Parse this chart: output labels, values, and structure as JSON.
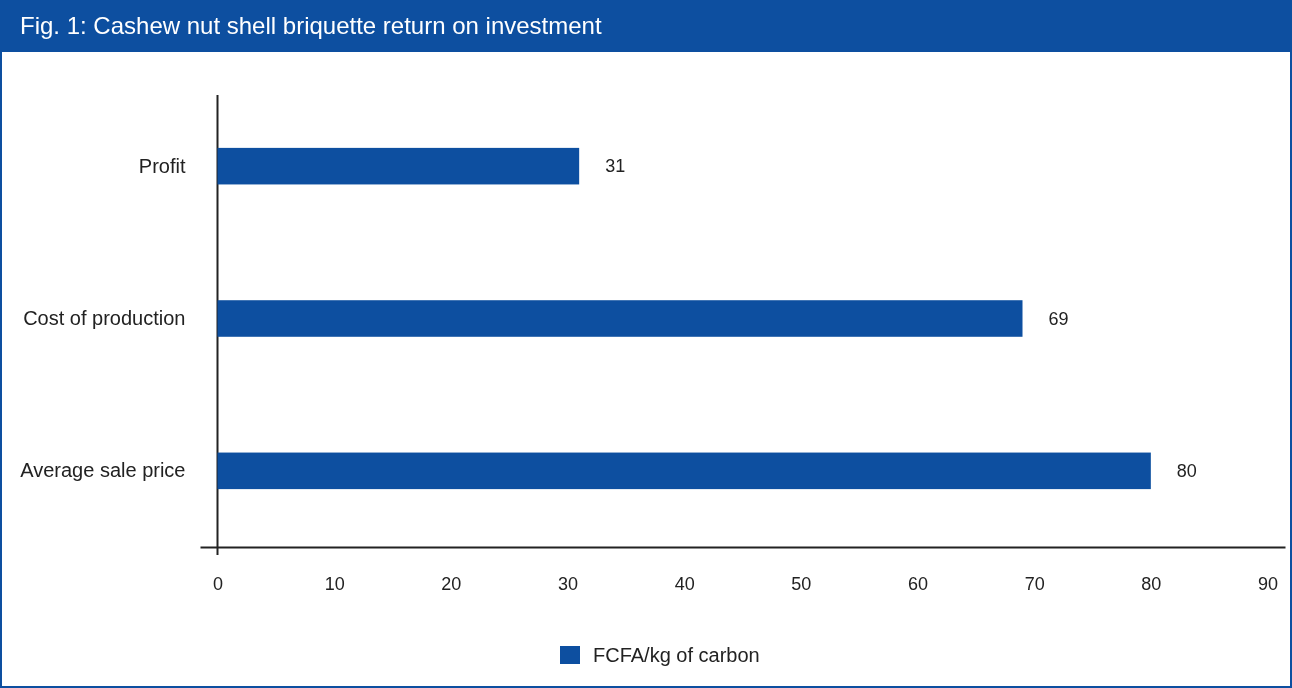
{
  "chart_data": {
    "type": "bar",
    "orientation": "horizontal",
    "title": "Fig. 1: Cashew nut shell briquette return on investment",
    "categories": [
      "Profit",
      "Cost of production",
      "Average sale price"
    ],
    "series": [
      {
        "name": "FCFA/kg of carbon",
        "color": "#0d4fa0",
        "values": [
          31,
          69,
          80
        ]
      }
    ],
    "xlim": [
      -1.5,
      91.5
    ],
    "xticks": [
      0,
      10,
      20,
      30,
      40,
      50,
      60,
      70,
      80,
      90
    ],
    "data_labels": true,
    "legend": "bottom",
    "grid": false
  }
}
